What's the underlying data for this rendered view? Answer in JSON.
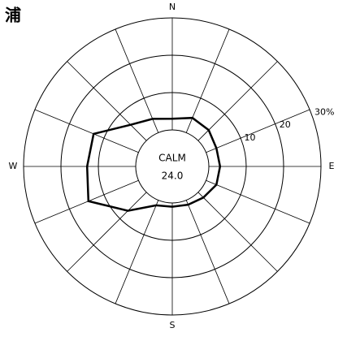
{
  "chart_data": {
    "type": "wind_rose",
    "title": "浦",
    "categories": [
      "N",
      null,
      null,
      null,
      "E",
      null,
      null,
      null,
      "S",
      null,
      null,
      null,
      "W",
      null,
      null,
      null
    ],
    "values": [
      3,
      4.3,
      4,
      3,
      3,
      3,
      2,
      1.3,
      1,
      1.5,
      7,
      14.5,
      13,
      13,
      6,
      4
    ],
    "color": "#000000",
    "calm": {
      "label": "CALM",
      "value": 24.0,
      "value_label": "24.0"
    },
    "rlim": [
      0,
      30
    ],
    "rticks": [
      10,
      20,
      {
        "value": 30,
        "label": "30%"
      }
    ]
  }
}
